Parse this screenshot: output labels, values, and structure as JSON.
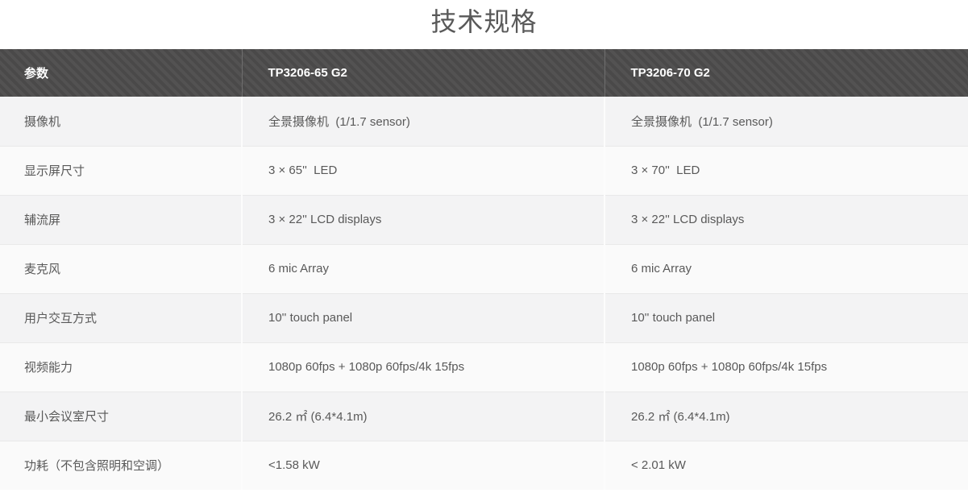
{
  "page": {
    "title": "技术规格"
  },
  "table": {
    "columns": [
      "参数",
      "TP3206-65 G2",
      "TP3206-70 G2"
    ],
    "rows": [
      {
        "param": "摄像机",
        "v65": "全景摄像机  (1/1.7 sensor)",
        "v70": "全景摄像机  (1/1.7 sensor)"
      },
      {
        "param": "显示屏尺寸",
        "v65": "3 × 65''  LED",
        "v70": "3 × 70''  LED"
      },
      {
        "param": "辅流屏",
        "v65": "3 × 22'' LCD displays",
        "v70": "3 × 22'' LCD displays"
      },
      {
        "param": "麦克风",
        "v65": "6 mic Array",
        "v70": "6 mic Array"
      },
      {
        "param": "用户交互方式",
        "v65": "10'' touch panel",
        "v70": "10'' touch panel"
      },
      {
        "param": "视频能力",
        "v65": "1080p 60fps + 1080p 60fps/4k 15fps",
        "v70": "1080p 60fps + 1080p 60fps/4k 15fps"
      },
      {
        "param": "最小会议室尺寸",
        "v65": "26.2 ㎡ (6.4*4.1m)",
        "v70": "26.2 ㎡ (6.4*4.1m)"
      },
      {
        "param": "功耗（不包含照明和空调）",
        "v65": "<1.58 kW",
        "v70": "< 2.01 kW"
      }
    ]
  },
  "colors": {
    "header_bg": "#4c4b4b",
    "header_stripe": "#535252",
    "header_text": "#ffffff",
    "row_odd_bg": "#f3f3f4",
    "row_even_bg": "#fafafa",
    "body_text": "#595959",
    "title_text": "#595959"
  }
}
